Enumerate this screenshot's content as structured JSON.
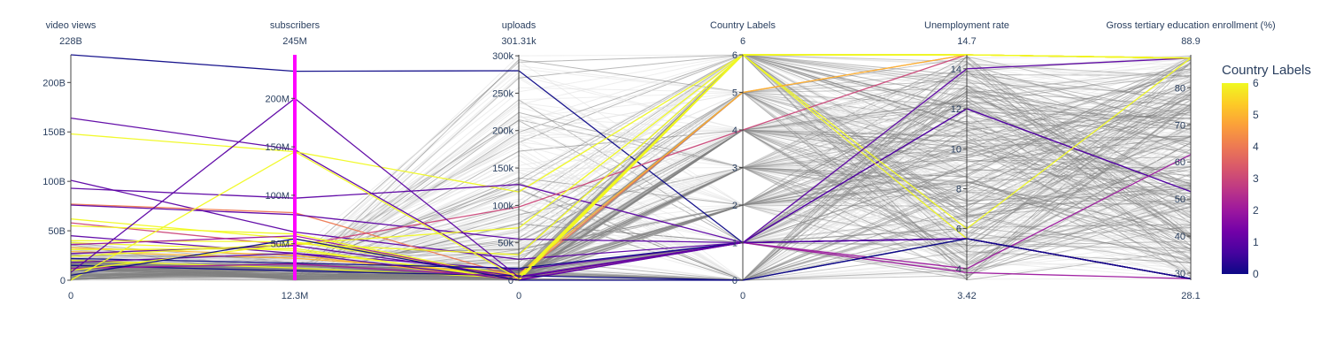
{
  "chart_data": {
    "type": "parcoords",
    "colorbar": {
      "title": "Country Labels",
      "min": 0,
      "max": 6,
      "ticks": [
        "0",
        "1",
        "2",
        "3",
        "4",
        "5",
        "6"
      ],
      "colorscale": [
        "#0d0887",
        "#46039f",
        "#7201a8",
        "#9c179e",
        "#bd3786",
        "#d8576b",
        "#ed7953",
        "#fb9f3a",
        "#fdca26",
        "#f0f921"
      ]
    },
    "context_color": "#808080",
    "highlight_color": "#ff00ff",
    "dimensions": [
      {
        "label": "video views",
        "max_label": "228B",
        "min_label": "0",
        "min": 0,
        "max": 228,
        "ticks": [
          {
            "v": 0,
            "t": "0"
          },
          {
            "v": 50,
            "t": "50B"
          },
          {
            "v": 100,
            "t": "100B"
          },
          {
            "v": 150,
            "t": "150B"
          },
          {
            "v": 200,
            "t": "200B"
          }
        ]
      },
      {
        "label": "subscribers",
        "max_label": "245M",
        "min_label": "12.3M",
        "min": 12.3,
        "max": 245,
        "ticks": [
          {
            "v": 50,
            "t": "50M"
          },
          {
            "v": 100,
            "t": "100M"
          },
          {
            "v": 150,
            "t": "150M"
          },
          {
            "v": 200,
            "t": "200M"
          }
        ],
        "constraint": [
          12.3,
          245
        ]
      },
      {
        "label": "uploads",
        "max_label": "301.31k",
        "min_label": "0",
        "min": 0,
        "max": 301.31,
        "ticks": [
          {
            "v": 0,
            "t": "0"
          },
          {
            "v": 50,
            "t": "50k"
          },
          {
            "v": 100,
            "t": "100k"
          },
          {
            "v": 150,
            "t": "150k"
          },
          {
            "v": 200,
            "t": "200k"
          },
          {
            "v": 250,
            "t": "250k"
          },
          {
            "v": 300,
            "t": "300k"
          }
        ]
      },
      {
        "label": "Country Labels",
        "max_label": "6",
        "min_label": "0",
        "min": 0,
        "max": 6,
        "ticks": [
          {
            "v": 0,
            "t": "0"
          },
          {
            "v": 1,
            "t": "1"
          },
          {
            "v": 2,
            "t": "2"
          },
          {
            "v": 3,
            "t": "3"
          },
          {
            "v": 4,
            "t": "4"
          },
          {
            "v": 5,
            "t": "5"
          },
          {
            "v": 6,
            "t": "6"
          }
        ]
      },
      {
        "label": "Unemployment rate",
        "max_label": "14.7",
        "min_label": "3.42",
        "min": 3.42,
        "max": 14.7,
        "ticks": [
          {
            "v": 4,
            "t": "4"
          },
          {
            "v": 6,
            "t": "6"
          },
          {
            "v": 8,
            "t": "8"
          },
          {
            "v": 10,
            "t": "10"
          },
          {
            "v": 12,
            "t": "12"
          },
          {
            "v": 14,
            "t": "14"
          }
        ]
      },
      {
        "label": "Gross tertiary education enrollment (%)",
        "max_label": "88.9",
        "min_label": "28.1",
        "min": 28.1,
        "max": 88.9,
        "ticks": [
          {
            "v": 30,
            "t": "30"
          },
          {
            "v": 40,
            "t": "40"
          },
          {
            "v": 50,
            "t": "50"
          },
          {
            "v": 60,
            "t": "60"
          },
          {
            "v": 70,
            "t": "70"
          },
          {
            "v": 80,
            "t": "80"
          }
        ]
      }
    ],
    "lines": [
      {
        "values": [
          228,
          228,
          280,
          1,
          12,
          52
        ],
        "color": 0
      },
      {
        "values": [
          164,
          147,
          4,
          1,
          12,
          52
        ],
        "color": 1
      },
      {
        "values": [
          148,
          145,
          118,
          6,
          6,
          88
        ],
        "color": 6
      },
      {
        "values": [
          101,
          62,
          28,
          1,
          5.5,
          28.5
        ],
        "color": 1
      },
      {
        "values": [
          93,
          97,
          128,
          1,
          5.5,
          28.5
        ],
        "color": 1
      },
      {
        "values": [
          77,
          82,
          4,
          5,
          14.7,
          88
        ],
        "color": 4
      },
      {
        "values": [
          76,
          80,
          55,
          1,
          5.5,
          28.5
        ],
        "color": 1
      },
      {
        "values": [
          62,
          55,
          5,
          6,
          14.7,
          88
        ],
        "color": 6
      },
      {
        "values": [
          58,
          48,
          98,
          4,
          14.7,
          88
        ],
        "color": 3
      },
      {
        "values": [
          55,
          60,
          2,
          6,
          14.7,
          88
        ],
        "color": 6
      },
      {
        "values": [
          45,
          40,
          14,
          1,
          5.5,
          28.5
        ],
        "color": 1
      },
      {
        "values": [
          40,
          52,
          6,
          6,
          5.5,
          28.5
        ],
        "color": 6
      },
      {
        "values": [
          38,
          43,
          3,
          6,
          14.7,
          88
        ],
        "color": 6
      },
      {
        "values": [
          36,
          58,
          1,
          1,
          4,
          62
        ],
        "color": 2
      },
      {
        "values": [
          33,
          38,
          0,
          6,
          14.7,
          88
        ],
        "color": 5
      },
      {
        "values": [
          31,
          45,
          0,
          6,
          14.7,
          88
        ],
        "color": 6
      },
      {
        "values": [
          29,
          35,
          8,
          5,
          14.7,
          88
        ],
        "color": 5
      },
      {
        "values": [
          27,
          48,
          5,
          1,
          5.5,
          28.5
        ],
        "color": 1
      },
      {
        "values": [
          24,
          50,
          34,
          6,
          14.7,
          88
        ],
        "color": 6
      },
      {
        "values": [
          22,
          30,
          16,
          1,
          5.5,
          28.5
        ],
        "color": 0
      },
      {
        "values": [
          20,
          25,
          3,
          6,
          14.7,
          88
        ],
        "color": 6
      },
      {
        "values": [
          18,
          40,
          0,
          1,
          14,
          88
        ],
        "color": 1
      },
      {
        "values": [
          15,
          22,
          6,
          0,
          5.5,
          28.5
        ],
        "color": 0
      },
      {
        "values": [
          12,
          29,
          4,
          1,
          3.8,
          28.5
        ],
        "color": 2
      },
      {
        "values": [
          0,
          145,
          2,
          6,
          14.7,
          88
        ],
        "color": 6
      },
      {
        "values": [
          10,
          50,
          70,
          6,
          14.7,
          88
        ],
        "color": 6
      },
      {
        "values": [
          8,
          200,
          4,
          1,
          5.5,
          28.5
        ],
        "color": 1
      },
      {
        "values": [
          5,
          55,
          0,
          0,
          5.5,
          28.5
        ],
        "color": 0
      }
    ]
  }
}
